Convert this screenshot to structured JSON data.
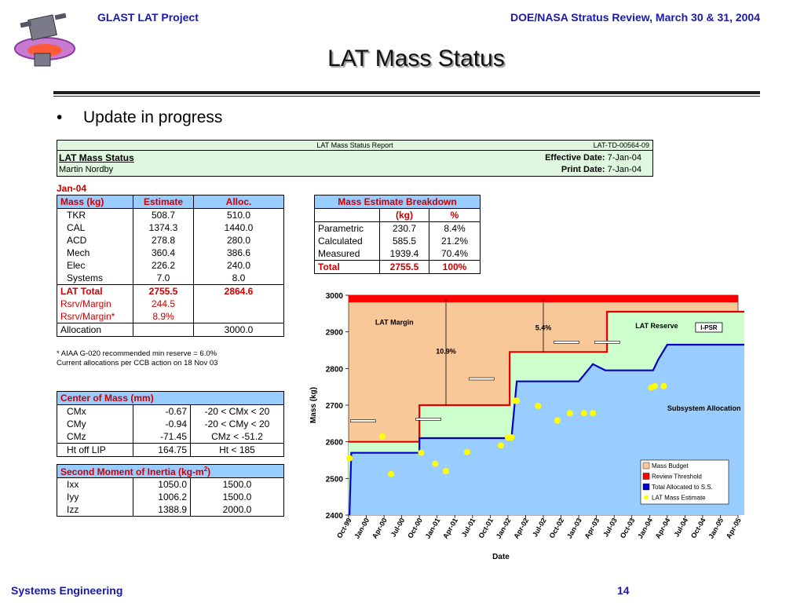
{
  "header": {
    "left": "GLAST LAT Project",
    "right": "DOE/NASA Stratus Review, March 30 & 31, 2004"
  },
  "title": "LAT Mass Status",
  "bullet": "Update in progress",
  "report": {
    "center_title": "LAT Mass Status Report",
    "doc_id": "LAT-TD-00564-09",
    "name": "LAT Mass Status",
    "author": "Martin Nordby",
    "effective_label": "Effective Date:",
    "effective_value": "7-Jan-04",
    "print_label": "Print Date:",
    "print_value": "7-Jan-04"
  },
  "mass_table": {
    "period": "Jan-04",
    "headers": [
      "Mass (kg)",
      "Estimate",
      "Alloc."
    ],
    "rows": [
      {
        "name": "TKR",
        "est": "508.7",
        "alloc": "510.0"
      },
      {
        "name": "CAL",
        "est": "1374.3",
        "alloc": "1440.0"
      },
      {
        "name": "ACD",
        "est": "278.8",
        "alloc": "280.0"
      },
      {
        "name": "Mech",
        "est": "360.4",
        "alloc": "386.6"
      },
      {
        "name": "Elec",
        "est": "226.2",
        "alloc": "240.0"
      },
      {
        "name": "Systems",
        "est": "7.0",
        "alloc": "8.0"
      }
    ],
    "total": {
      "name": "LAT Total",
      "est": "2755.5",
      "alloc": "2864.6"
    },
    "rsrv": {
      "name": "Rsrv/Margin",
      "est": "244.5"
    },
    "rsrv_star": {
      "name": "Rsrv/Margin*",
      "est": "8.9%"
    },
    "allocation": {
      "name": "Allocation",
      "alloc": "3000.0"
    },
    "note1": "* AIAA G-020 recommended min reserve = 6.0%",
    "note2": "Current allocations per CCB action on 18 Nov 03"
  },
  "com_table": {
    "header": "Center of Mass (mm)",
    "rows": [
      {
        "name": "CMx",
        "val": "-0.67",
        "req": "-20 < CMx < 20"
      },
      {
        "name": "CMy",
        "val": "-0.94",
        "req": "-20 < CMy < 20"
      },
      {
        "name": "CMz",
        "val": "-71.45",
        "req": "CMz < -51.2"
      },
      {
        "name": "Ht off LIP",
        "val": "164.75",
        "req": "Ht < 185"
      }
    ]
  },
  "moi_table": {
    "header": "Second Moment of Inertia (kg-m",
    "header_sup": "2",
    "header_close": ")",
    "rows": [
      {
        "name": "Ixx",
        "val": "1050.0",
        "req": "1500.0"
      },
      {
        "name": "Iyy",
        "val": "1006.2",
        "req": "1500.0"
      },
      {
        "name": "Izz",
        "val": "1388.9",
        "req": "2000.0"
      }
    ]
  },
  "breakdown_table": {
    "header": "Mass Estimate Breakdown",
    "col_kg": "(kg)",
    "col_pct": "%",
    "rows": [
      {
        "name": "Parametric",
        "kg": "230.7",
        "pct": "8.4%"
      },
      {
        "name": "Calculated",
        "kg": "585.5",
        "pct": "21.2%"
      },
      {
        "name": "Measured",
        "kg": "1939.4",
        "pct": "70.4%"
      }
    ],
    "total": {
      "name": "Total",
      "kg": "2755.5",
      "pct": "100%"
    }
  },
  "chart_data": {
    "type": "line",
    "ylabel": "Mass (kg)",
    "xlabel": "Date",
    "ylim": [
      2400,
      3000
    ],
    "yticks": [
      2400,
      2500,
      2600,
      2700,
      2800,
      2900,
      3000
    ],
    "xticks": [
      "Oct-99",
      "Jan-00",
      "Apr-00",
      "Jul-00",
      "Oct-00",
      "Jan-01",
      "Apr-01",
      "Jul-01",
      "Oct-01",
      "Jan-02",
      "Apr-02",
      "Jul-02",
      "Oct-02",
      "Jan-03",
      "Apr-03",
      "Jul-03",
      "Oct-03",
      "Jan-04",
      "Apr-04",
      "Jul-04",
      "Oct-04",
      "Jan-05",
      "Apr-05"
    ],
    "legend": [
      "Mass Budget",
      "Review Threshold",
      "Total Allocated to S.S.",
      "LAT Mass Estimate"
    ],
    "legend_colors": [
      "#f9c898",
      "#ff0000",
      "#0000cc",
      "#ffff00"
    ],
    "mass_budget": 3000,
    "review_threshold": [
      {
        "x": 0,
        "y": 2600
      },
      {
        "x": 4,
        "y": 2600
      },
      {
        "x": 4,
        "y": 2700
      },
      {
        "x": 9.1,
        "y": 2700
      },
      {
        "x": 9.1,
        "y": 2845
      },
      {
        "x": 14.6,
        "y": 2845
      },
      {
        "x": 14.6,
        "y": 2955
      },
      {
        "x": 22.7,
        "y": 2955
      },
      {
        "x": 22.7,
        "y": 3000
      }
    ],
    "total_allocated": [
      {
        "x": 0.05,
        "y": 2400
      },
      {
        "x": 0.15,
        "y": 2570
      },
      {
        "x": 4,
        "y": 2570
      },
      {
        "x": 4,
        "y": 2610
      },
      {
        "x": 9.2,
        "y": 2610
      },
      {
        "x": 9.5,
        "y": 2765
      },
      {
        "x": 13,
        "y": 2765
      },
      {
        "x": 13.8,
        "y": 2812
      },
      {
        "x": 14.5,
        "y": 2795
      },
      {
        "x": 17.2,
        "y": 2795
      },
      {
        "x": 17.5,
        "y": 2825
      },
      {
        "x": 18,
        "y": 2865
      },
      {
        "x": 22.8,
        "y": 2865
      }
    ],
    "estimates": [
      {
        "x": 0.05,
        "y": 2555
      },
      {
        "x": 1.9,
        "y": 2615
      },
      {
        "x": 2.4,
        "y": 2512
      },
      {
        "x": 4.1,
        "y": 2570
      },
      {
        "x": 4.9,
        "y": 2540
      },
      {
        "x": 5.5,
        "y": 2520
      },
      {
        "x": 6.7,
        "y": 2572
      },
      {
        "x": 8.6,
        "y": 2590
      },
      {
        "x": 9.0,
        "y": 2612
      },
      {
        "x": 9.2,
        "y": 2612
      },
      {
        "x": 9.4,
        "y": 2712
      },
      {
        "x": 9.5,
        "y": 2712
      },
      {
        "x": 10.7,
        "y": 2698
      },
      {
        "x": 11.8,
        "y": 2658
      },
      {
        "x": 12.5,
        "y": 2678
      },
      {
        "x": 13.3,
        "y": 2678
      },
      {
        "x": 13.8,
        "y": 2678
      },
      {
        "x": 17.1,
        "y": 2748
      },
      {
        "x": 17.3,
        "y": 2752
      },
      {
        "x": 17.8,
        "y": 2752
      }
    ],
    "annotations": [
      {
        "text": "LAT Margin",
        "x": 1.5,
        "y": 2920
      },
      {
        "text": "10.9%",
        "x": 5.5,
        "y": 2840
      },
      {
        "text": "5.4%",
        "x": 11.0,
        "y": 2905
      },
      {
        "text": "LAT Reserve",
        "x": 16.2,
        "y": 2910
      },
      {
        "text": "Subsystem Allocation",
        "x": 18.0,
        "y": 2685
      }
    ],
    "callout_label": "I-PSR"
  }
}
